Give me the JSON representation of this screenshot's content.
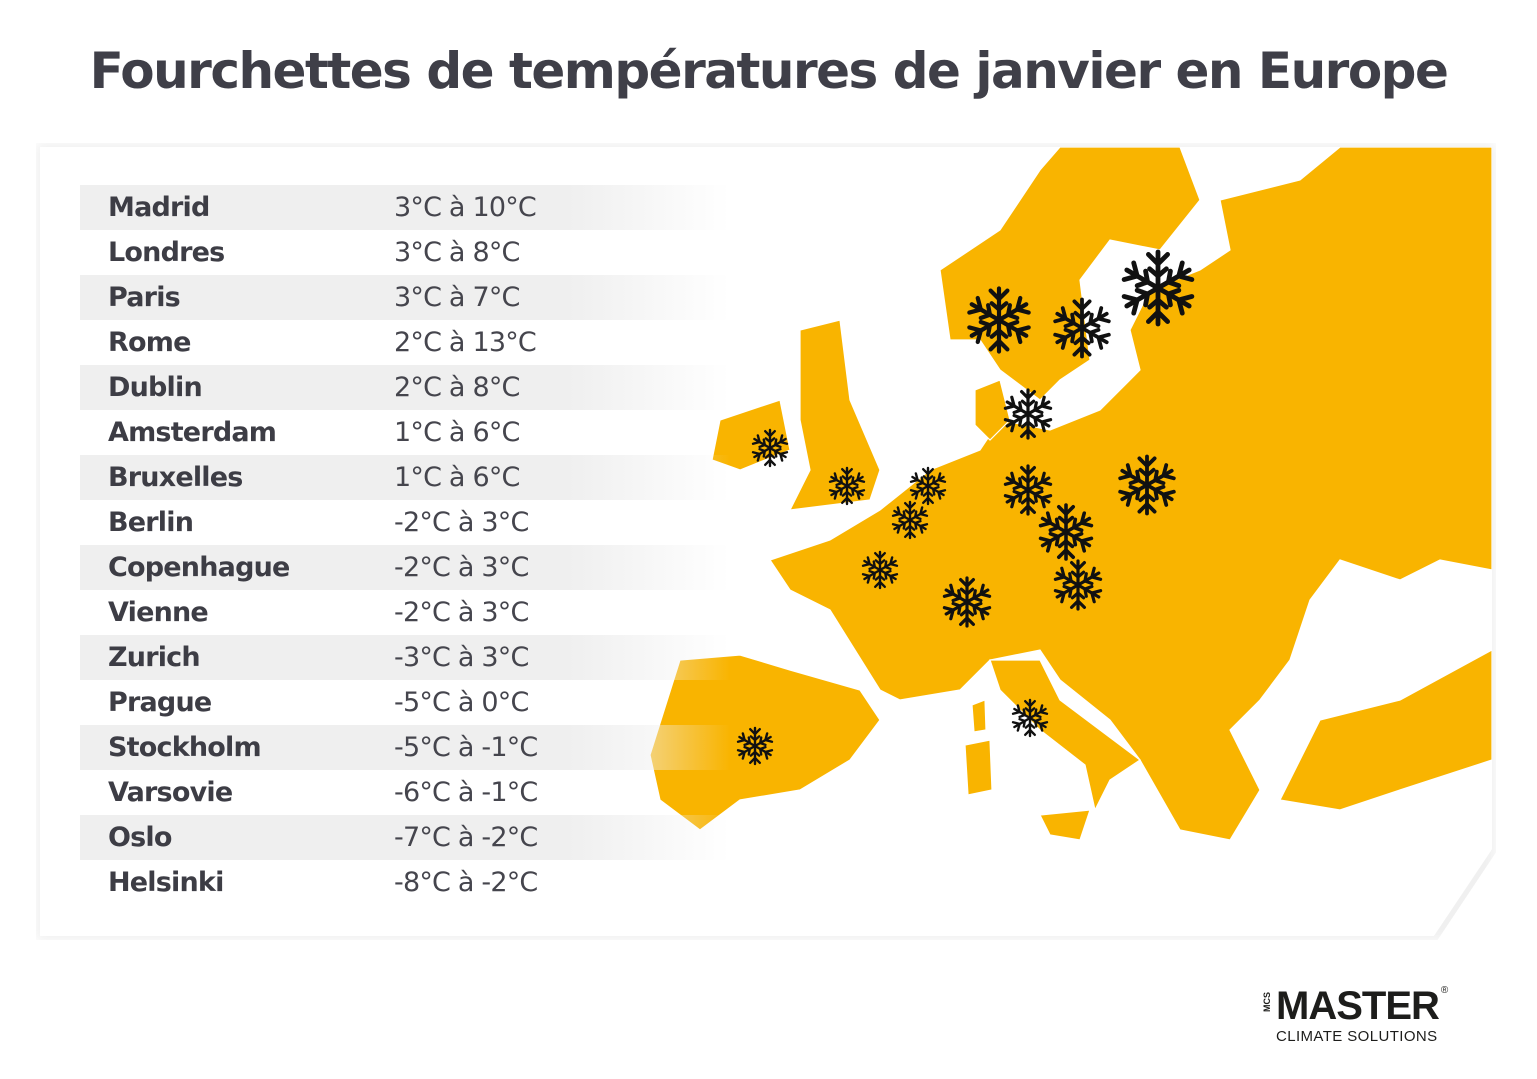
{
  "title": "Fourchettes de températures de janvier en Europe",
  "map_color": "#F9B400",
  "table": [
    {
      "city": "Madrid",
      "range": "3°C à 10°C"
    },
    {
      "city": "Londres",
      "range": "3°C à 8°C"
    },
    {
      "city": "Paris",
      "range": "3°C à 7°C"
    },
    {
      "city": "Rome",
      "range": "2°C à 13°C"
    },
    {
      "city": "Dublin",
      "range": "2°C à 8°C"
    },
    {
      "city": "Amsterdam",
      "range": "1°C à 6°C"
    },
    {
      "city": "Bruxelles",
      "range": "1°C à 6°C"
    },
    {
      "city": "Berlin",
      "range": "-2°C à 3°C"
    },
    {
      "city": "Copenhague",
      "range": "-2°C à 3°C"
    },
    {
      "city": "Vienne",
      "range": "-2°C à 3°C"
    },
    {
      "city": "Zurich",
      "range": "-3°C à 3°C"
    },
    {
      "city": "Prague",
      "range": "-5°C à 0°C"
    },
    {
      "city": "Stockholm",
      "range": "-5°C à -1°C"
    },
    {
      "city": "Varsovie",
      "range": "-6°C à -1°C"
    },
    {
      "city": "Oslo",
      "range": "-7°C à -2°C"
    },
    {
      "city": "Helsinki",
      "range": "-8°C à -2°C"
    }
  ],
  "logo": {
    "brand": "MASTER",
    "prefix": "MCS",
    "registered": "®",
    "tagline": "CLIMATE SOLUTIONS"
  },
  "icons": {
    "marker": "snowflake-icon"
  }
}
